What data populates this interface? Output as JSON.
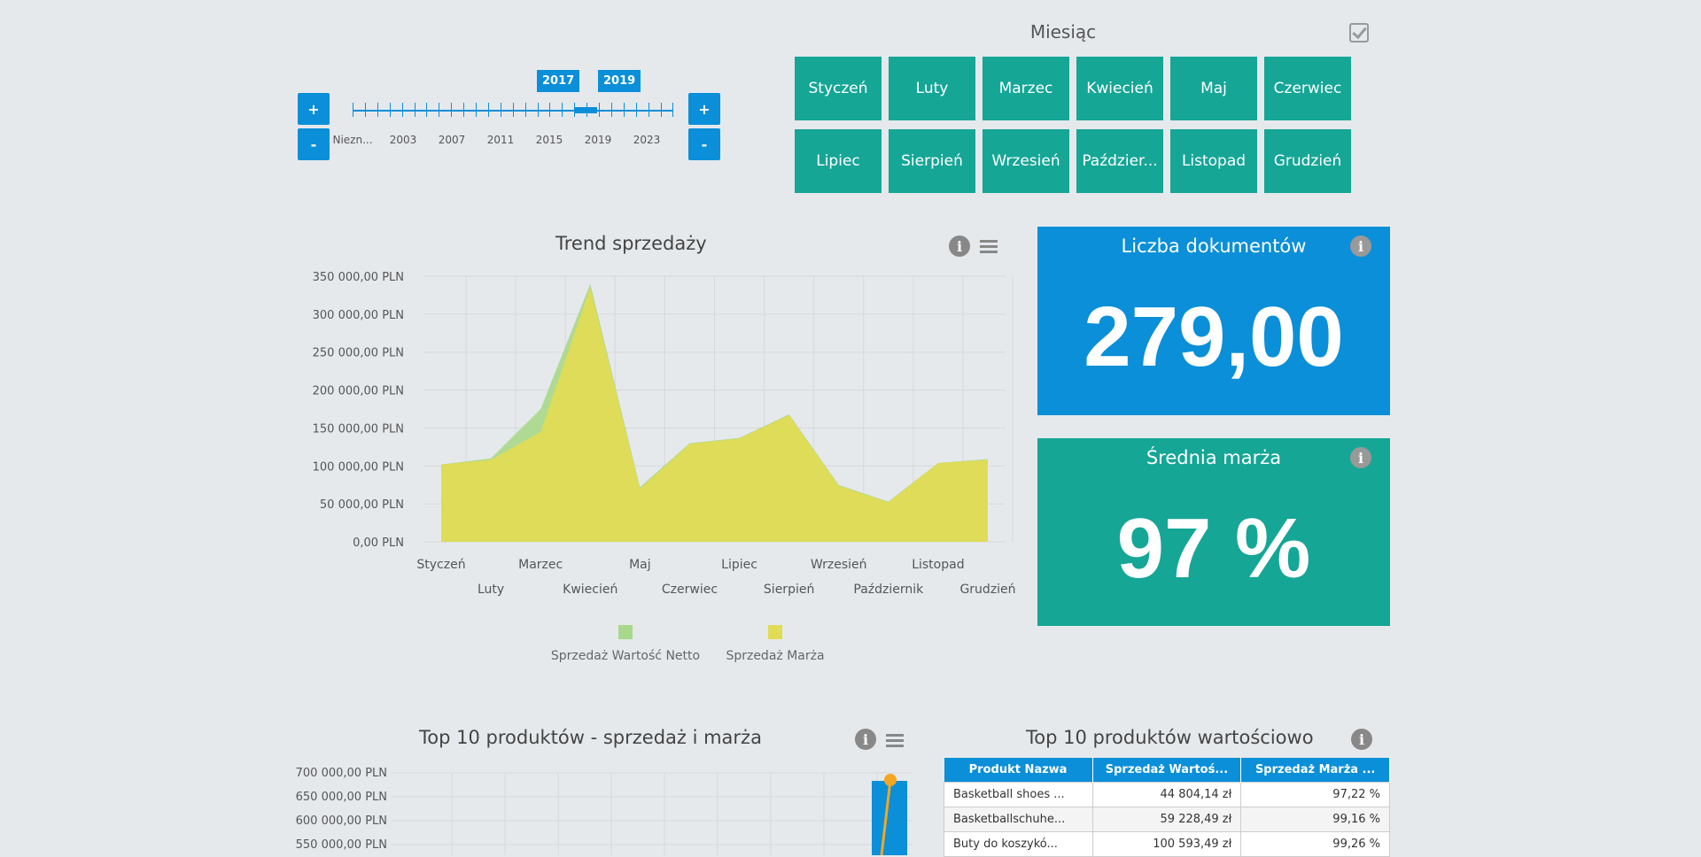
{
  "timeline": {
    "flags": [
      "2017",
      "2019"
    ],
    "labels": [
      "Niezn...",
      "2003",
      "2007",
      "2011",
      "2015",
      "2019",
      "2023"
    ],
    "plus": "+",
    "minus": "-"
  },
  "month_filter": {
    "title": "Miesiąc",
    "months": [
      "Styczeń",
      "Luty",
      "Marzec",
      "Kwiecień",
      "Maj",
      "Czerwiec",
      "Lipiec",
      "Sierpień",
      "Wrzesień",
      "Paździer...",
      "Listopad",
      "Grudzień"
    ]
  },
  "trend": {
    "title": "Trend sprzedaży",
    "info_icon": "i"
  },
  "kpis": {
    "docs_title": "Liczba dokumentów",
    "docs_value": "279,00",
    "margin_title": "Średnia marża",
    "margin_value": "97 %",
    "docs_color": "#0a8fd8",
    "margin_color": "#15a696"
  },
  "top10": {
    "title": "Top 10 produktów - sprzedaż i marża",
    "y_ticks": [
      "700 000,00 PLN",
      "650 000,00 PLN",
      "600 000,00 PLN",
      "550 000,00 PLN"
    ]
  },
  "top10_table": {
    "title": "Top 10 produktów wartościowo",
    "headers": [
      "Produkt Nazwa",
      "Sprzedaż Wartoś...",
      "Sprzedaż Marża ..."
    ],
    "rows": [
      [
        "Basketball shoes ...",
        "44 804,14 zł",
        "97,22 %"
      ],
      [
        "Basketballschuhe...",
        "59 228,49 zł",
        "99,16 %"
      ],
      [
        "Buty do koszykó...",
        "100 593,49 zł",
        "99,26 %"
      ]
    ]
  },
  "chart_data": {
    "type": "area",
    "title": "Trend sprzedaży",
    "categories": [
      "Styczeń",
      "Luty",
      "Marzec",
      "Kwiecień",
      "Maj",
      "Czerwiec",
      "Lipiec",
      "Sierpień",
      "Wrzesień",
      "Październik",
      "Listopad",
      "Grudzień"
    ],
    "y_tick_labels": [
      "0,00 PLN",
      "50 000,00 PLN",
      "100 000,00 PLN",
      "150 000,00 PLN",
      "200 000,00 PLN",
      "250 000,00 PLN",
      "300 000,00 PLN",
      "350 000,00 PLN"
    ],
    "ylim": [
      0,
      350000
    ],
    "grid": true,
    "legend_position": "bottom",
    "series": [
      {
        "name": "Sprzedaż Wartość Netto",
        "color": "#a8d88a",
        "values": [
          102000,
          110000,
          175000,
          340000,
          72000,
          130000,
          137000,
          168000,
          75000,
          53000,
          104000,
          109000
        ]
      },
      {
        "name": "Sprzedaż Marża",
        "color": "#e0dc55",
        "values": [
          102000,
          108000,
          145000,
          335000,
          70000,
          129000,
          136000,
          167000,
          74000,
          52000,
          104000,
          108000
        ]
      }
    ]
  }
}
